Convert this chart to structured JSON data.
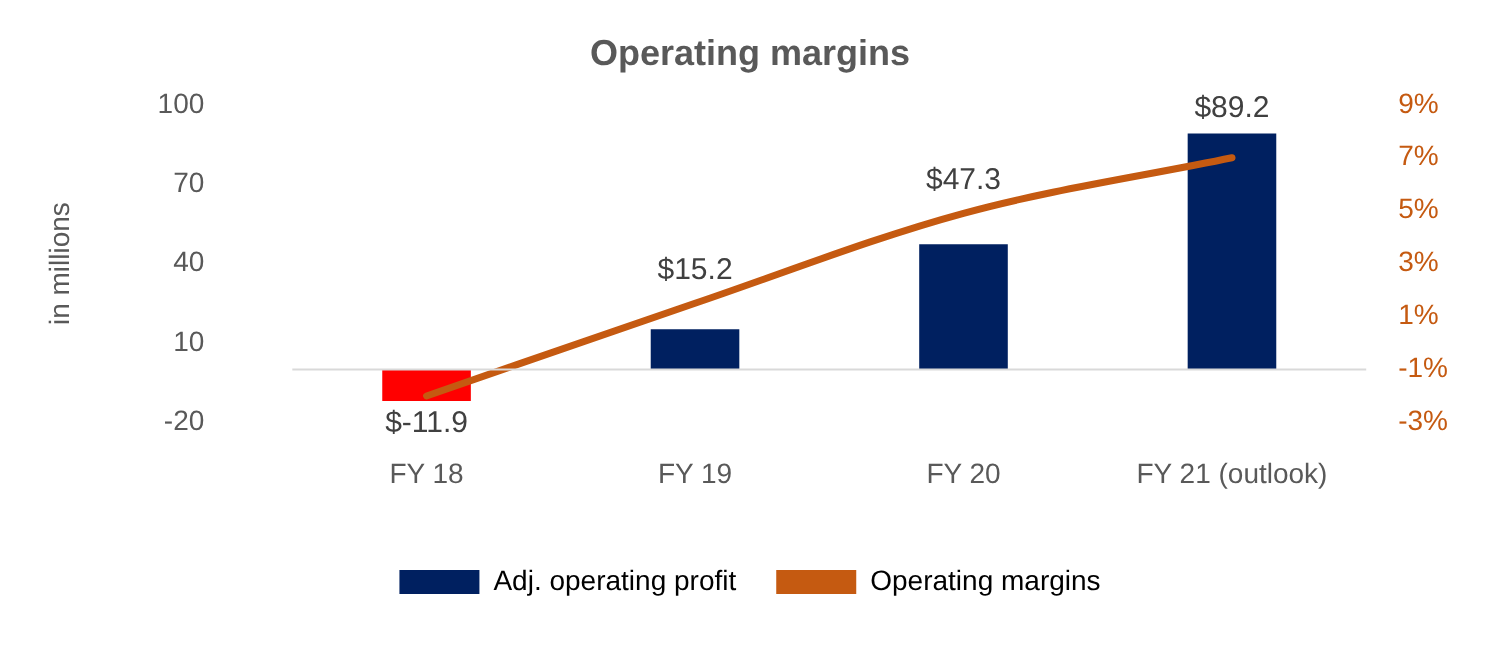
{
  "chart_data": {
    "type": "bar",
    "title": "Operating margins",
    "ylabel": "in millions",
    "categories": [
      "FY 18",
      "FY 19",
      "FY 20",
      "FY 21 (outlook)"
    ],
    "series": [
      {
        "name": "Adj. operating profit",
        "colors": [
          "#ff0000",
          "#002060",
          "#002060",
          "#002060"
        ],
        "values": [
          -11.9,
          15.2,
          47.3,
          89.2
        ],
        "value_labels": [
          "$-11.9",
          "$15.2",
          "$47.3",
          "$89.2"
        ]
      },
      {
        "name": "Operating margins",
        "type": "line",
        "axis": "y2",
        "color": "#c55a11",
        "values": [
          -2,
          1.5,
          4.9,
          7
        ]
      }
    ],
    "ylim": [
      -20,
      100
    ],
    "yticks": [
      -20,
      10,
      40,
      70,
      100
    ],
    "y2lim": [
      -3,
      9
    ],
    "y2ticks": [
      {
        "value": -3,
        "label": "-3%"
      },
      {
        "value": -1,
        "label": "-1%"
      },
      {
        "value": 1,
        "label": "1%"
      },
      {
        "value": 3,
        "label": "3%"
      },
      {
        "value": 5,
        "label": "5%"
      },
      {
        "value": 7,
        "label": "7%"
      },
      {
        "value": 9,
        "label": "9%"
      }
    ],
    "legend": "bottom",
    "marker": "none"
  }
}
